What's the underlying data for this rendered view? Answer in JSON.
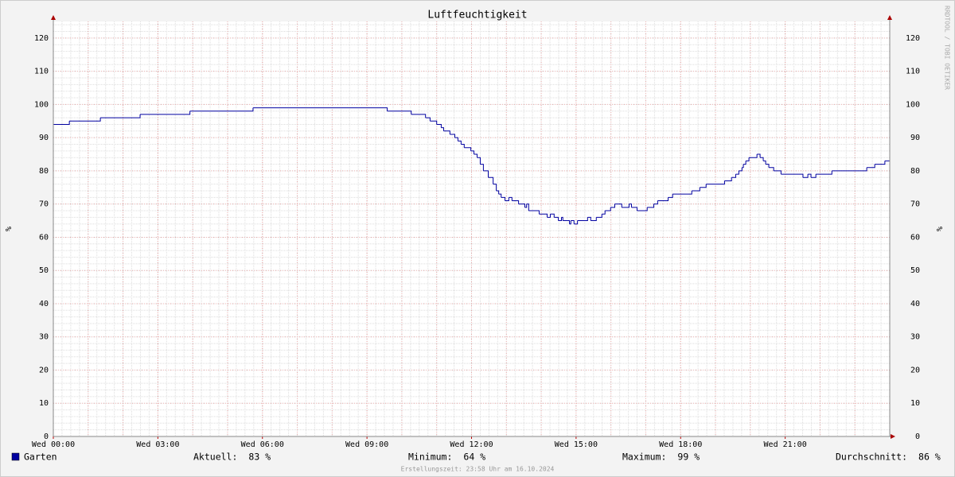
{
  "chart_data": {
    "type": "line",
    "title": "Luftfeuchtigkeit",
    "ylabel": "%",
    "xlim": [
      0,
      24
    ],
    "xticks": [
      {
        "value": 0,
        "label": "Wed 00:00"
      },
      {
        "value": 3,
        "label": "Wed 03:00"
      },
      {
        "value": 6,
        "label": "Wed 06:00"
      },
      {
        "value": 9,
        "label": "Wed 09:00"
      },
      {
        "value": 12,
        "label": "Wed 12:00"
      },
      {
        "value": 15,
        "label": "Wed 15:00"
      },
      {
        "value": 18,
        "label": "Wed 18:00"
      },
      {
        "value": 21,
        "label": "Wed 21:00"
      }
    ],
    "ylim": [
      0,
      125
    ],
    "yticks": [
      0,
      10,
      20,
      30,
      40,
      50,
      60,
      70,
      80,
      90,
      100,
      110,
      120
    ],
    "grid": true,
    "step": true,
    "series": [
      {
        "name": "Garten",
        "color": "#0000a0",
        "x": [
          0,
          0.46,
          1.35,
          2.49,
          3.92,
          5.73,
          9.58,
          10.27,
          10.68,
          10.81,
          11.0,
          11.13,
          11.2,
          11.38,
          11.52,
          11.61,
          11.7,
          11.79,
          11.98,
          12.07,
          12.16,
          12.25,
          12.34,
          12.48,
          12.62,
          12.71,
          12.78,
          12.85,
          12.96,
          13.07,
          13.16,
          13.35,
          13.53,
          13.58,
          13.64,
          13.94,
          14.17,
          14.26,
          14.37,
          14.49,
          14.58,
          14.62,
          14.81,
          14.85,
          14.94,
          15.04,
          15.33,
          15.42,
          15.58,
          15.74,
          15.83,
          15.99,
          16.11,
          16.31,
          16.52,
          16.59,
          16.75,
          17.04,
          17.23,
          17.34,
          17.64,
          17.77,
          18.32,
          18.55,
          18.73,
          19.26,
          19.46,
          19.58,
          19.67,
          19.76,
          19.8,
          19.87,
          19.96,
          20.19,
          20.28,
          20.37,
          20.44,
          20.53,
          20.67,
          20.88,
          21.51,
          21.65,
          21.74,
          21.88,
          22.34,
          23.34,
          23.57,
          23.86,
          24
        ],
        "values": [
          94,
          95,
          96,
          97,
          98,
          99,
          98,
          97,
          96,
          95,
          94,
          93,
          92,
          91,
          90,
          89,
          88,
          87,
          86,
          85,
          84,
          82,
          80,
          78,
          76,
          74,
          73,
          72,
          71,
          72,
          71,
          70,
          69,
          70,
          68,
          67,
          66,
          67,
          66,
          65,
          66,
          65,
          64,
          65,
          64,
          65,
          66,
          65,
          66,
          67,
          68,
          69,
          70,
          69,
          70,
          69,
          68,
          69,
          70,
          71,
          72,
          73,
          74,
          75,
          76,
          77,
          78,
          79,
          80,
          81,
          82,
          83,
          84,
          85,
          84,
          83,
          82,
          81,
          80,
          79,
          78,
          79,
          78,
          79,
          80,
          81,
          82,
          83,
          83
        ]
      }
    ],
    "stats": [
      {
        "label": "Aktuell:",
        "value": 83
      },
      {
        "label": "Minimum:",
        "value": 64
      },
      {
        "label": "Maximum:",
        "value": 99
      },
      {
        "label": "Durchschnitt:",
        "value": 86
      }
    ],
    "footer": "Erstellungszeit: 23:58 Uhr am 16.10.2024",
    "watermark": "RRDTOOL / TOBI OETIKER"
  }
}
